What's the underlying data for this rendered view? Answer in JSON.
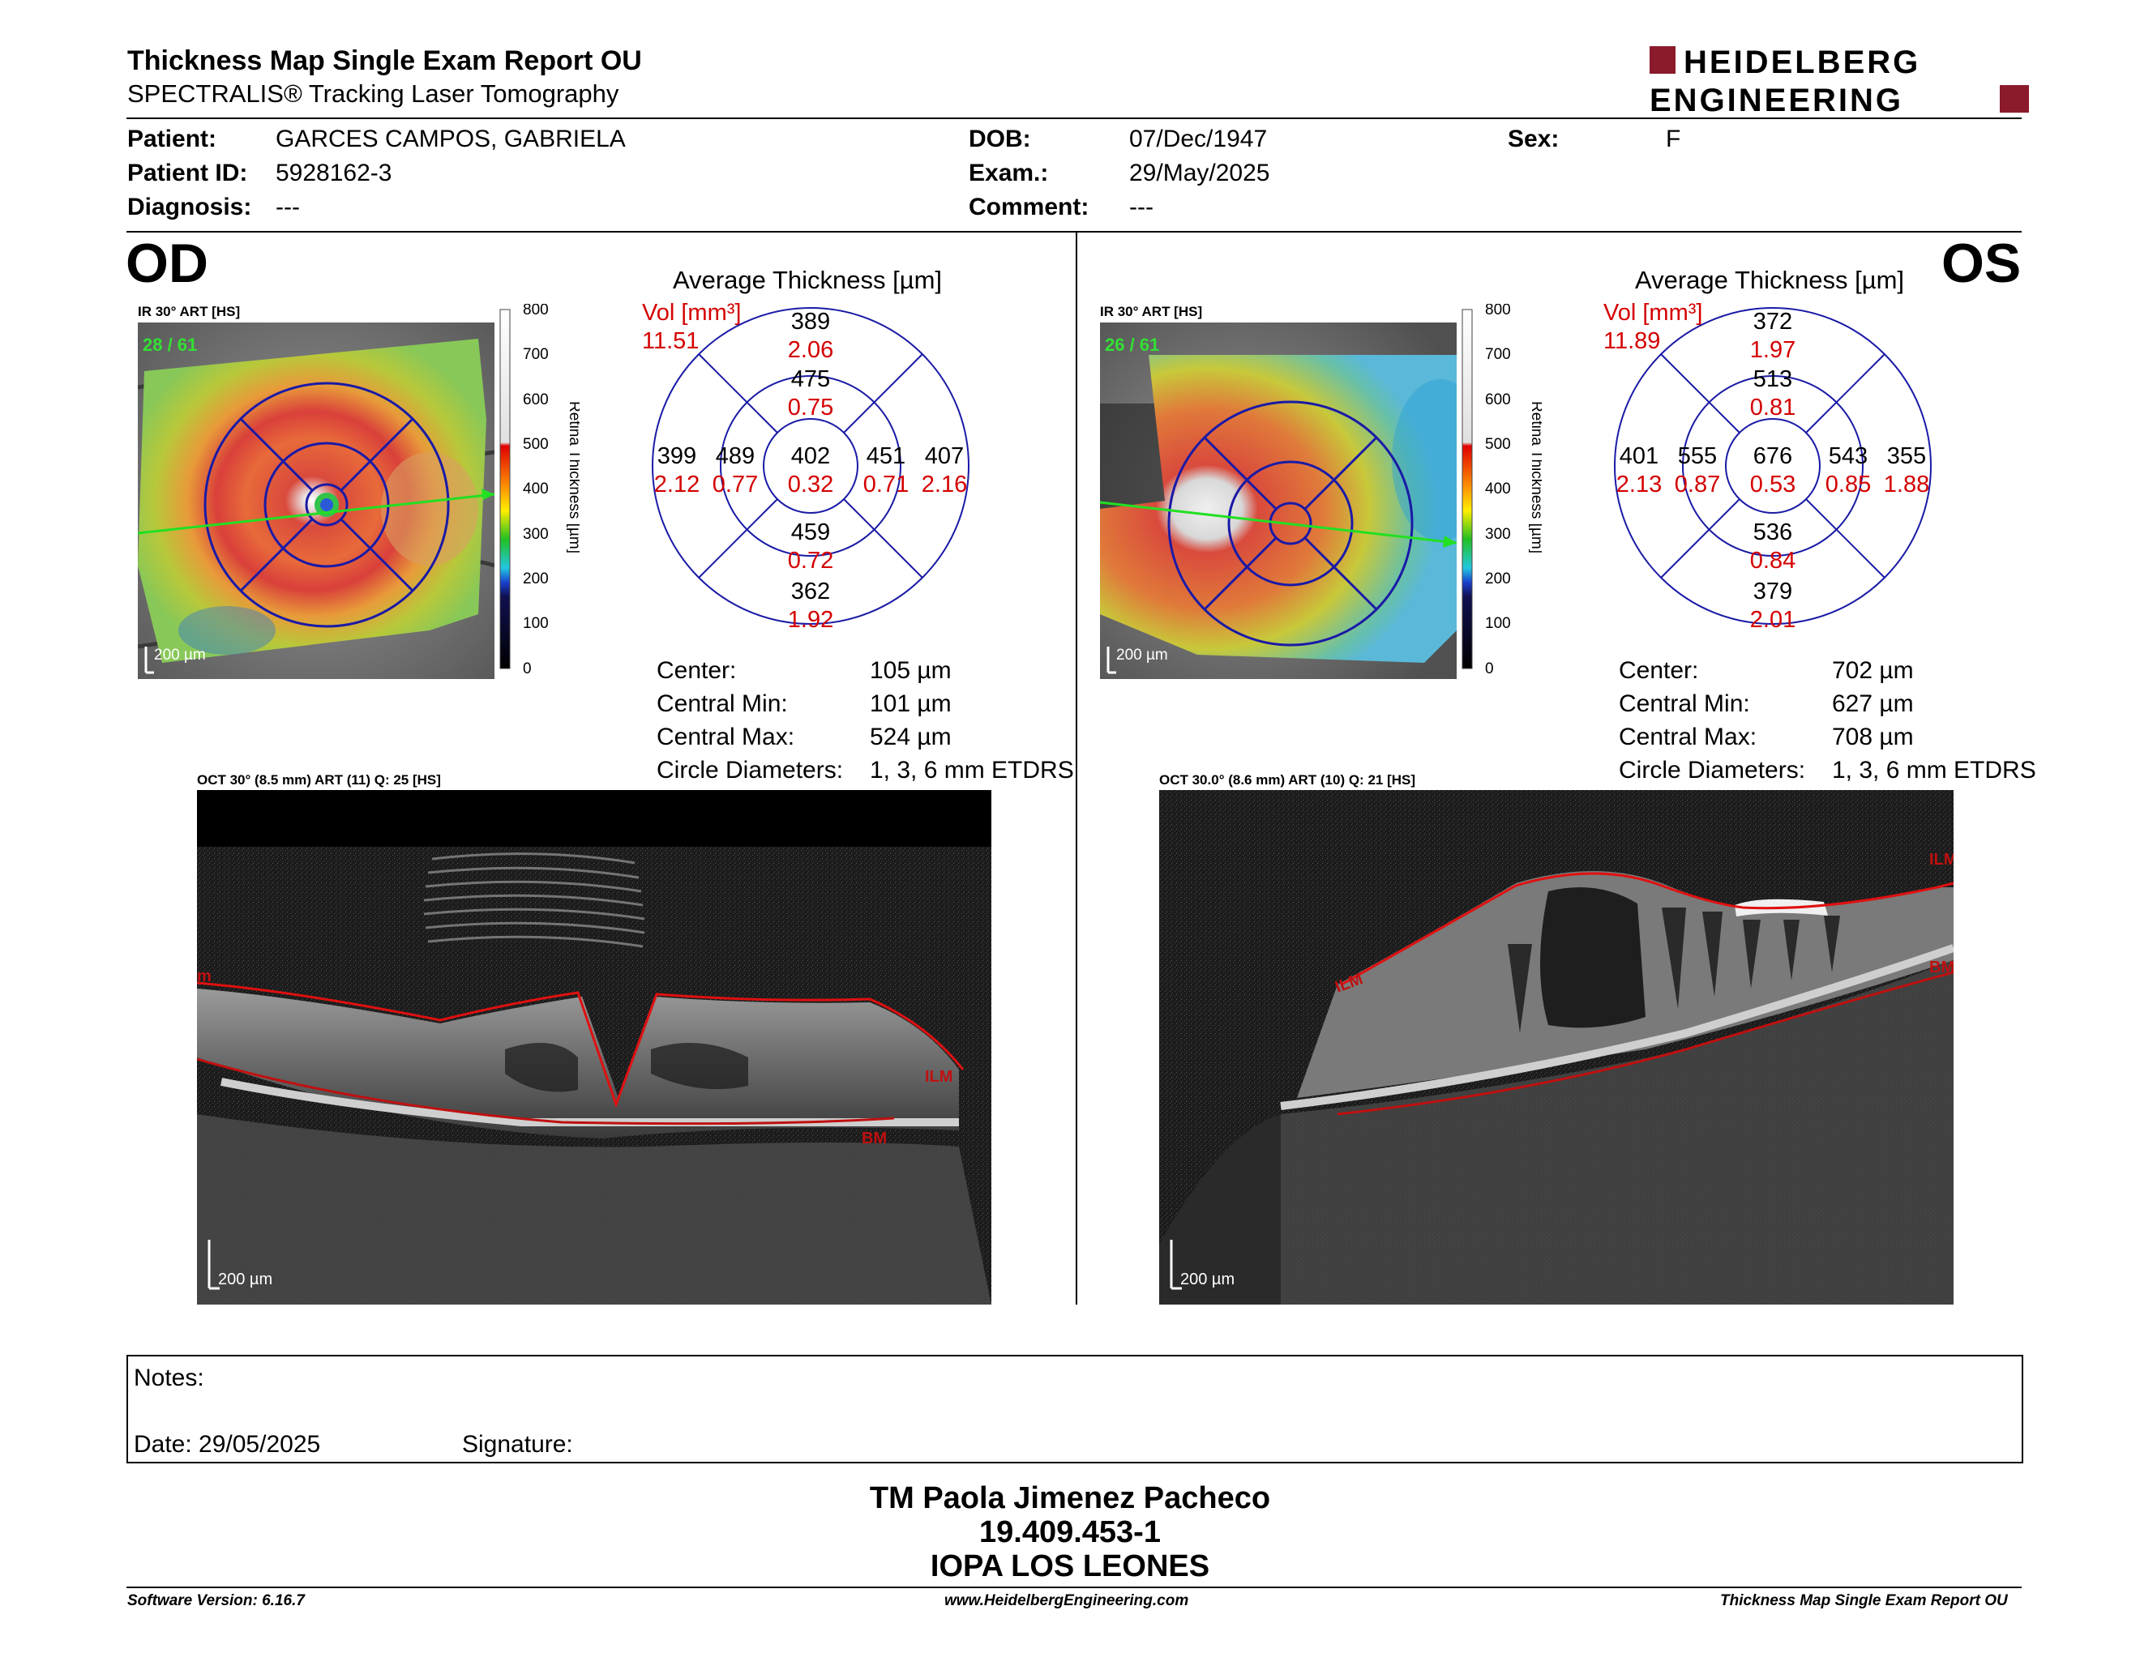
{
  "header": {
    "title": "Thickness Map Single Exam Report OU",
    "subtitle": "SPECTRALIS® Tracking Laser Tomography",
    "logo_line1": "HEIDELBERG",
    "logo_line2": "ENGINEERING"
  },
  "patient": {
    "patient_label": "Patient:",
    "patient_value": "GARCES CAMPOS, GABRIELA",
    "id_label": "Patient ID:",
    "id_value": "5928162-3",
    "diagnosis_label": "Diagnosis:",
    "diagnosis_value": "---",
    "dob_label": "DOB:",
    "dob_value": "07/Dec/1947",
    "exam_label": "Exam.:",
    "exam_value": "29/May/2025",
    "comment_label": "Comment:",
    "comment_value": "---",
    "sex_label": "Sex:",
    "sex_value": "F"
  },
  "od": {
    "eye": "OD",
    "ir_caption": "IR 30° ART [HS]",
    "ir_count": "28 / 61",
    "scale_label": "200 µm",
    "colorbar_ticks": [
      "800",
      "700",
      "600",
      "500",
      "400",
      "300",
      "200",
      "100",
      "0"
    ],
    "colorbar_title": "Retina Thickness [µm]",
    "avg_title": "Average Thickness [µm]",
    "vol_label": "Vol [mm³]",
    "vol_value": "11.51",
    "grid": {
      "outer_top": [
        "389",
        "2.06"
      ],
      "inner_top": [
        "475",
        "0.75"
      ],
      "outer_left": [
        "399",
        "2.12"
      ],
      "inner_left": [
        "489",
        "0.77"
      ],
      "center": [
        "402",
        "0.32"
      ],
      "inner_right": [
        "451",
        "0.71"
      ],
      "outer_right": [
        "407",
        "2.16"
      ],
      "inner_bottom": [
        "459",
        "0.72"
      ],
      "outer_bottom": [
        "362",
        "1.92"
      ]
    },
    "stats": [
      {
        "label": "Center:",
        "value": "105 µm"
      },
      {
        "label": "Central Min:",
        "value": "101 µm"
      },
      {
        "label": "Central Max:",
        "value": "524 µm"
      },
      {
        "label": "Circle Diameters:",
        "value": "1, 3, 6 mm ETDRS"
      }
    ],
    "oct_caption": "OCT 30° (8.5 mm) ART (11) Q: 25 [HS]",
    "oct_scale": "200 µm",
    "ilm_label": "ILM",
    "bm_label": "BM",
    "ilm_left": "m"
  },
  "os": {
    "eye": "OS",
    "ir_caption": "IR 30° ART [HS]",
    "ir_count": "26 / 61",
    "scale_label": "200 µm",
    "colorbar_ticks": [
      "800",
      "700",
      "600",
      "500",
      "400",
      "300",
      "200",
      "100",
      "0"
    ],
    "colorbar_title": "Retina Thickness [µm]",
    "avg_title": "Average Thickness [µm]",
    "vol_label": "Vol [mm³]",
    "vol_value": "11.89",
    "grid": {
      "outer_top": [
        "372",
        "1.97"
      ],
      "inner_top": [
        "513",
        "0.81"
      ],
      "outer_left": [
        "401",
        "2.13"
      ],
      "inner_left": [
        "555",
        "0.87"
      ],
      "center": [
        "676",
        "0.53"
      ],
      "inner_right": [
        "543",
        "0.85"
      ],
      "outer_right": [
        "355",
        "1.88"
      ],
      "inner_bottom": [
        "536",
        "0.84"
      ],
      "outer_bottom": [
        "379",
        "2.01"
      ]
    },
    "stats": [
      {
        "label": "Center:",
        "value": "702 µm"
      },
      {
        "label": "Central Min:",
        "value": "627 µm"
      },
      {
        "label": "Central Max:",
        "value": "708 µm"
      },
      {
        "label": "Circle Diameters:",
        "value": "1, 3, 6 mm ETDRS"
      }
    ],
    "oct_caption": "OCT 30.0° (8.6 mm) ART (10) Q: 21 [HS]",
    "oct_scale": "200 µm",
    "ilm_label": "ILM",
    "bm_label": "BM",
    "ilm_left": "ILM"
  },
  "notes": {
    "notes_label": "Notes:",
    "date_label": "Date: 29/05/2025",
    "signature_label": "Signature:"
  },
  "signature_block": {
    "name": "TM Paola Jimenez Pacheco",
    "rut": "19.409.453-1",
    "institution": "IOPA LOS LEONES"
  },
  "footer": {
    "version": "Software Version: 6.16.7",
    "website": "www.HeidelbergEngineering.com",
    "report": "Thickness Map Single Exam Report OU"
  },
  "colors": {
    "red_value": "#d40000",
    "grid_blue": "#1a1aa6",
    "logo_red": "#8b1a2b"
  }
}
